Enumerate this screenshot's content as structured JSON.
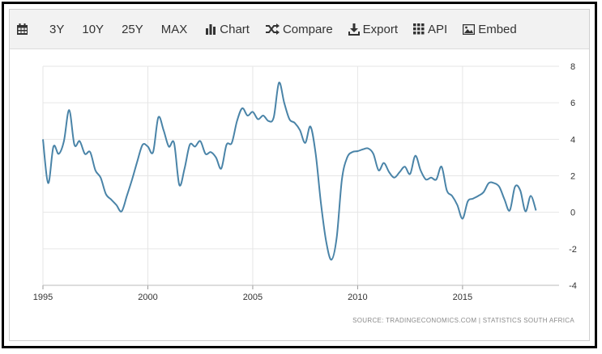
{
  "toolbar": {
    "calendar_icon": "calendar-icon",
    "ranges": [
      "3Y",
      "10Y",
      "25Y",
      "MAX"
    ],
    "chart_label": "Chart",
    "compare_label": "Compare",
    "export_label": "Export",
    "api_label": "API",
    "embed_label": "Embed"
  },
  "source": "SOURCE: TRADINGECONOMICS.COM  |  STATISTICS SOUTH AFRICA",
  "colors": {
    "line": "#4a84a8",
    "grid": "#e6e6e6",
    "toolbar_bg": "#f2f2f2"
  },
  "chart_data": {
    "type": "line",
    "title": "",
    "xlabel": "",
    "ylabel": "",
    "xlim": [
      1995,
      2019.6
    ],
    "ylim": [
      -4,
      8
    ],
    "grid": true,
    "x_ticks": [
      1995,
      2000,
      2005,
      2010,
      2015
    ],
    "y_ticks": [
      8,
      6,
      4,
      2,
      0,
      -2,
      -4
    ],
    "series": [
      {
        "values": [
          [
            1995.0,
            4.0
          ],
          [
            1995.25,
            1.6
          ],
          [
            1995.5,
            3.6
          ],
          [
            1995.75,
            3.2
          ],
          [
            1996.0,
            3.9
          ],
          [
            1996.25,
            5.6
          ],
          [
            1996.5,
            3.7
          ],
          [
            1996.75,
            3.9
          ],
          [
            1997.0,
            3.2
          ],
          [
            1997.25,
            3.3
          ],
          [
            1997.5,
            2.3
          ],
          [
            1997.75,
            1.9
          ],
          [
            1998.0,
            1.0
          ],
          [
            1998.25,
            0.7
          ],
          [
            1998.5,
            0.4
          ],
          [
            1998.75,
            0.05
          ],
          [
            1999.0,
            0.9
          ],
          [
            1999.25,
            1.8
          ],
          [
            1999.5,
            2.8
          ],
          [
            1999.75,
            3.7
          ],
          [
            2000.0,
            3.6
          ],
          [
            2000.25,
            3.3
          ],
          [
            2000.5,
            5.2
          ],
          [
            2000.75,
            4.5
          ],
          [
            2001.0,
            3.6
          ],
          [
            2001.25,
            3.8
          ],
          [
            2001.5,
            1.5
          ],
          [
            2001.75,
            2.4
          ],
          [
            2002.0,
            3.7
          ],
          [
            2002.25,
            3.6
          ],
          [
            2002.5,
            3.9
          ],
          [
            2002.75,
            3.2
          ],
          [
            2003.0,
            3.3
          ],
          [
            2003.25,
            3.0
          ],
          [
            2003.5,
            2.4
          ],
          [
            2003.75,
            3.7
          ],
          [
            2004.0,
            3.8
          ],
          [
            2004.25,
            5.0
          ],
          [
            2004.5,
            5.7
          ],
          [
            2004.75,
            5.3
          ],
          [
            2005.0,
            5.5
          ],
          [
            2005.25,
            5.1
          ],
          [
            2005.5,
            5.3
          ],
          [
            2005.75,
            5.0
          ],
          [
            2006.0,
            5.2
          ],
          [
            2006.25,
            7.1
          ],
          [
            2006.5,
            6.0
          ],
          [
            2006.75,
            5.1
          ],
          [
            2007.0,
            4.9
          ],
          [
            2007.25,
            4.5
          ],
          [
            2007.5,
            3.8
          ],
          [
            2007.75,
            4.7
          ],
          [
            2008.0,
            3.2
          ],
          [
            2008.25,
            0.5
          ],
          [
            2008.5,
            -1.6
          ],
          [
            2008.75,
            -2.6
          ],
          [
            2009.0,
            -1.4
          ],
          [
            2009.25,
            1.8
          ],
          [
            2009.5,
            3.0
          ],
          [
            2009.75,
            3.3
          ],
          [
            2010.0,
            3.35
          ],
          [
            2010.25,
            3.45
          ],
          [
            2010.5,
            3.5
          ],
          [
            2010.75,
            3.2
          ],
          [
            2011.0,
            2.3
          ],
          [
            2011.25,
            2.7
          ],
          [
            2011.5,
            2.2
          ],
          [
            2011.75,
            1.9
          ],
          [
            2012.0,
            2.2
          ],
          [
            2012.25,
            2.5
          ],
          [
            2012.5,
            2.1
          ],
          [
            2012.75,
            3.1
          ],
          [
            2013.0,
            2.3
          ],
          [
            2013.25,
            1.8
          ],
          [
            2013.5,
            1.9
          ],
          [
            2013.75,
            1.8
          ],
          [
            2014.0,
            2.5
          ],
          [
            2014.25,
            1.2
          ],
          [
            2014.5,
            0.9
          ],
          [
            2014.75,
            0.4
          ],
          [
            2015.0,
            -0.35
          ],
          [
            2015.25,
            0.6
          ],
          [
            2015.5,
            0.75
          ],
          [
            2015.75,
            0.9
          ],
          [
            2016.0,
            1.1
          ],
          [
            2016.25,
            1.6
          ],
          [
            2016.5,
            1.6
          ],
          [
            2016.75,
            1.4
          ],
          [
            2017.0,
            0.7
          ],
          [
            2017.25,
            0.1
          ],
          [
            2017.5,
            1.4
          ],
          [
            2017.75,
            1.2
          ],
          [
            2018.0,
            0.05
          ],
          [
            2018.25,
            0.9
          ],
          [
            2018.5,
            0.1
          ]
        ]
      }
    ]
  }
}
